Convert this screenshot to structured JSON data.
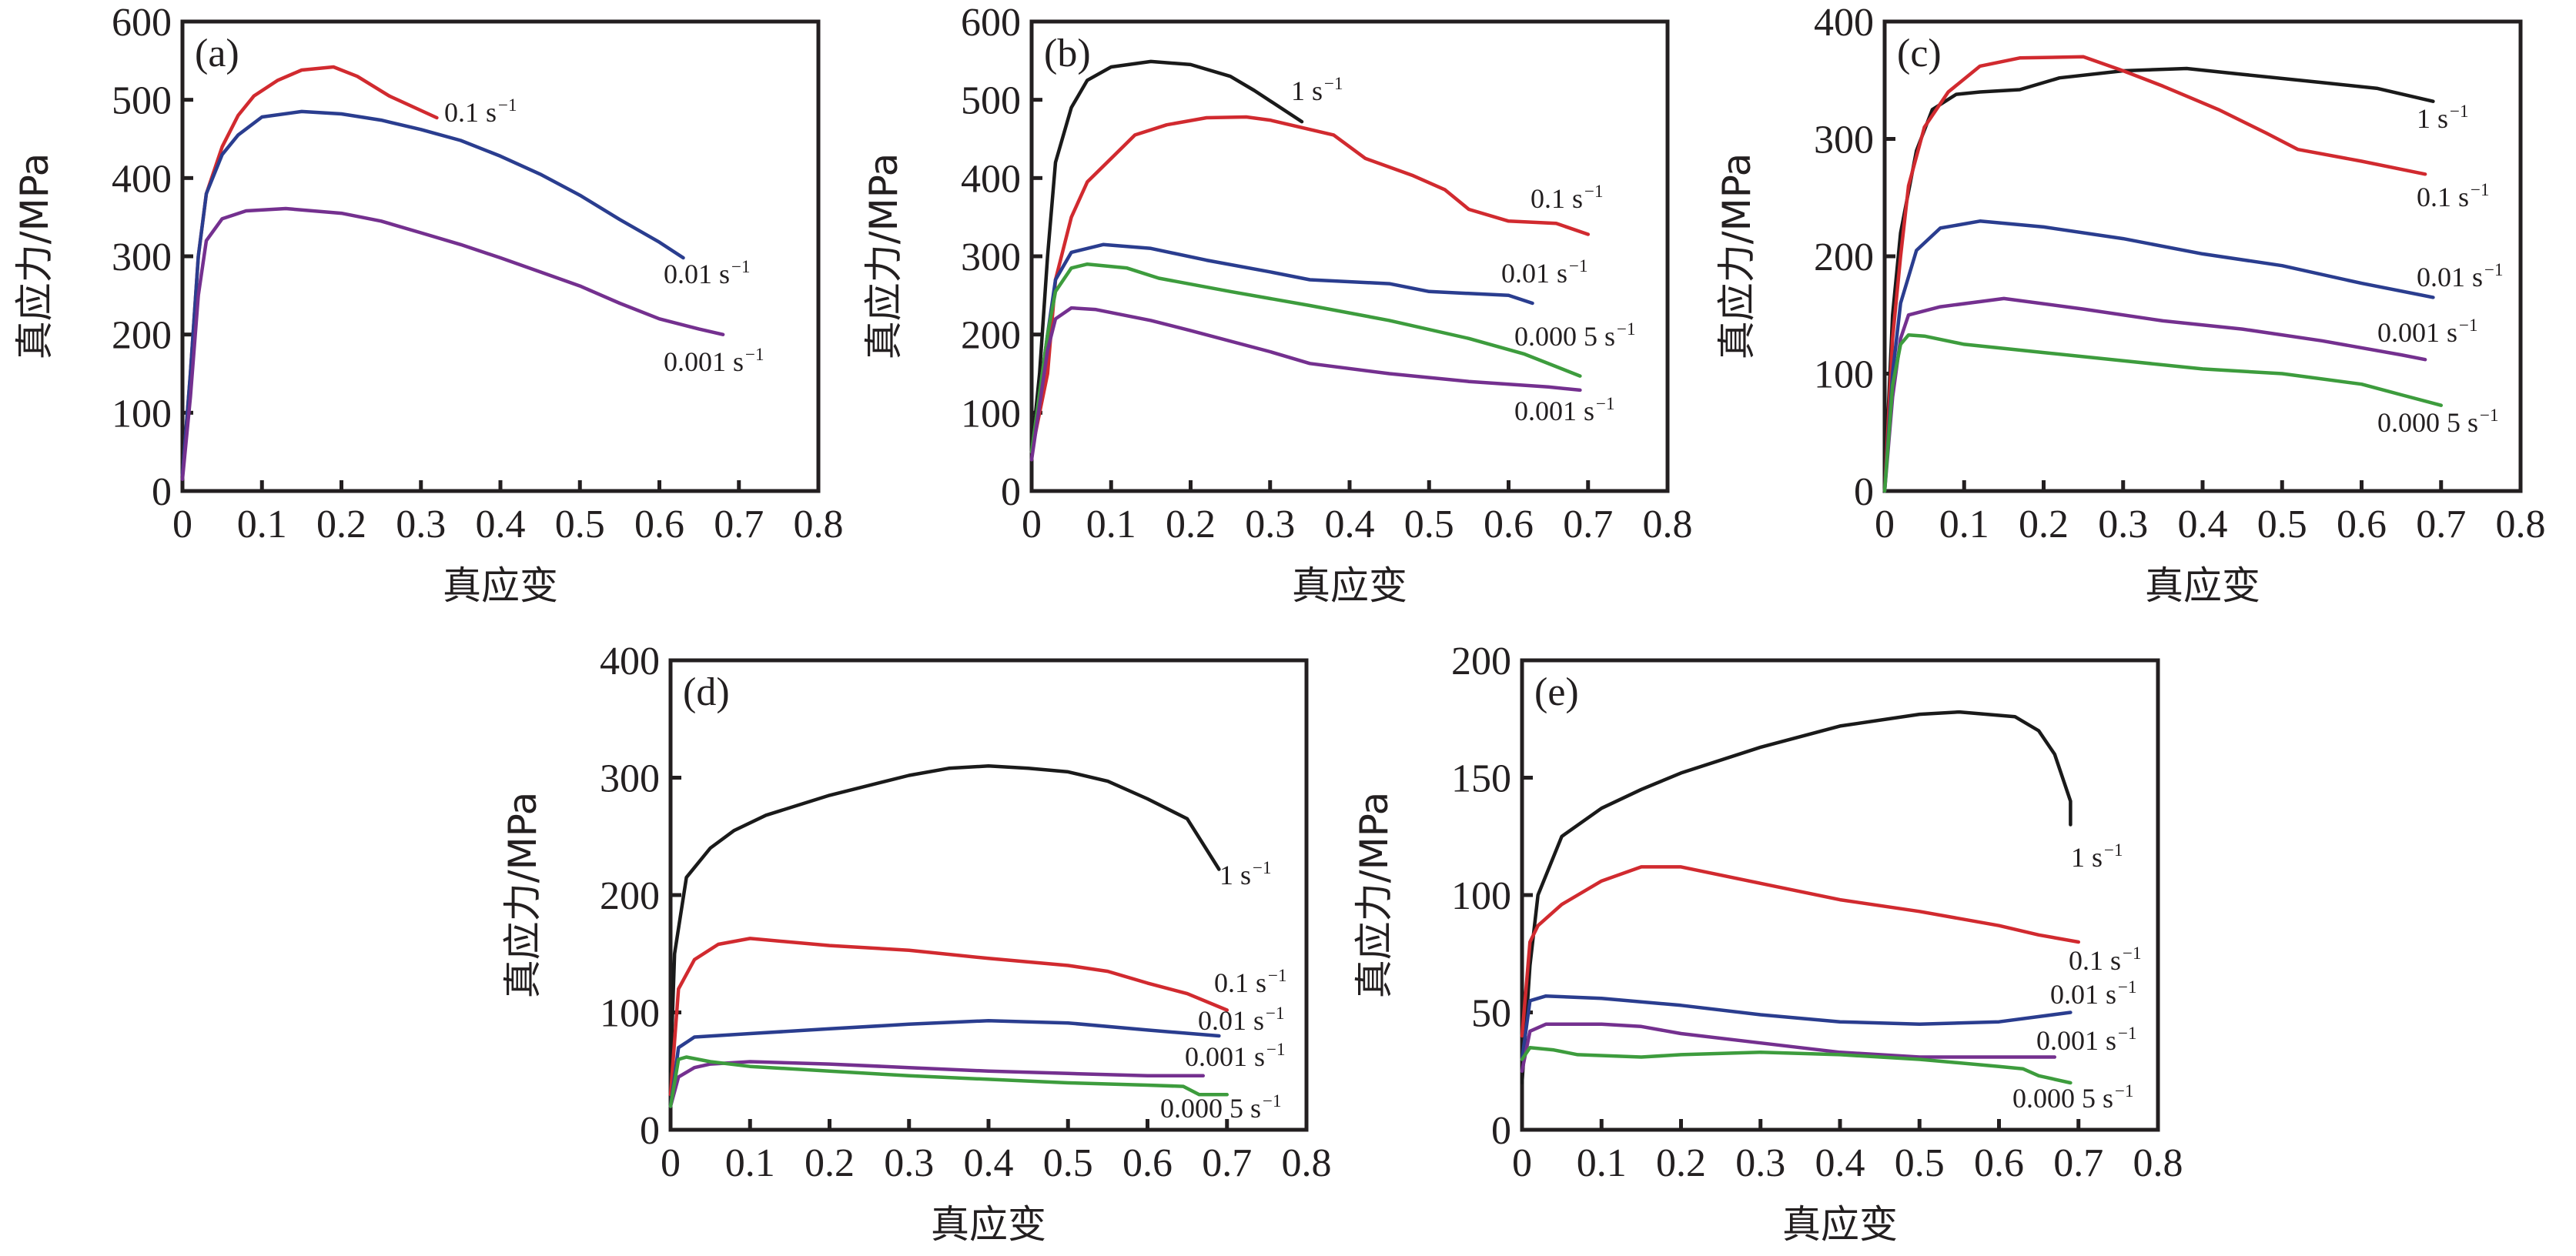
{
  "chart_data": [
    {
      "type": "line",
      "panel": "(a)",
      "xlabel": "真应变",
      "ylabel": "真应力/MPa",
      "xlim": [
        0,
        0.8
      ],
      "ylim": [
        0,
        600
      ],
      "xticks": [
        "0",
        "0.1",
        "0.2",
        "0.3",
        "0.4",
        "0.5",
        "0.6",
        "0.7",
        "0.8"
      ],
      "yticks": [
        "0",
        "100",
        "200",
        "300",
        "400",
        "500",
        "600"
      ],
      "grid": false,
      "series": [
        {
          "name": "0.1 s−1",
          "rate": "0.1 s",
          "sup": "−1",
          "color": "#d12a2f",
          "x": [
            0,
            0.01,
            0.02,
            0.03,
            0.05,
            0.07,
            0.09,
            0.12,
            0.15,
            0.19,
            0.22,
            0.26,
            0.32
          ],
          "y": [
            20,
            150,
            300,
            380,
            440,
            480,
            505,
            525,
            538,
            542,
            530,
            505,
            477
          ]
        },
        {
          "name": "0.01 s−1",
          "rate": "0.01 s",
          "sup": "−1",
          "color": "#2a3d8f",
          "x": [
            0,
            0.01,
            0.02,
            0.03,
            0.05,
            0.07,
            0.1,
            0.15,
            0.2,
            0.25,
            0.3,
            0.35,
            0.4,
            0.45,
            0.5,
            0.55,
            0.6,
            0.63
          ],
          "y": [
            20,
            150,
            300,
            380,
            430,
            455,
            478,
            485,
            482,
            474,
            462,
            448,
            428,
            405,
            378,
            347,
            318,
            298
          ]
        },
        {
          "name": "0.001 s−1",
          "rate": "0.001 s",
          "sup": "−1",
          "color": "#74308f",
          "x": [
            0,
            0.01,
            0.02,
            0.03,
            0.05,
            0.08,
            0.13,
            0.2,
            0.25,
            0.3,
            0.35,
            0.4,
            0.45,
            0.5,
            0.55,
            0.6,
            0.65,
            0.68
          ],
          "y": [
            15,
            120,
            250,
            320,
            348,
            358,
            361,
            355,
            345,
            330,
            315,
            298,
            280,
            262,
            240,
            220,
            207,
            200
          ]
        }
      ]
    },
    {
      "type": "line",
      "panel": "(b)",
      "xlabel": "真应变",
      "ylabel": "真应力/MPa",
      "xlim": [
        0,
        0.8
      ],
      "ylim": [
        0,
        600
      ],
      "xticks": [
        "0",
        "0.1",
        "0.2",
        "0.3",
        "0.4",
        "0.5",
        "0.6",
        "0.7",
        "0.8"
      ],
      "yticks": [
        "0",
        "100",
        "200",
        "300",
        "400",
        "500",
        "600"
      ],
      "grid": false,
      "series": [
        {
          "name": "1 s−1",
          "rate": "1 s",
          "sup": "−1",
          "color": "#1a1a1a",
          "x": [
            0,
            0.01,
            0.02,
            0.03,
            0.05,
            0.07,
            0.1,
            0.15,
            0.2,
            0.25,
            0.28,
            0.34
          ],
          "y": [
            50,
            150,
            300,
            420,
            490,
            525,
            542,
            549,
            545,
            530,
            512,
            472
          ]
        },
        {
          "name": "0.1 s−1",
          "rate": "0.1 s",
          "sup": "−1",
          "color": "#d12a2f",
          "x": [
            0,
            0.02,
            0.03,
            0.05,
            0.07,
            0.1,
            0.13,
            0.17,
            0.22,
            0.27,
            0.3,
            0.38,
            0.42,
            0.48,
            0.52,
            0.55,
            0.6,
            0.66,
            0.7
          ],
          "y": [
            50,
            150,
            270,
            350,
            395,
            425,
            455,
            468,
            477,
            478,
            474,
            455,
            425,
            403,
            385,
            360,
            345,
            342,
            328
          ]
        },
        {
          "name": "0.01 s−1",
          "rate": "0.01 s",
          "sup": "−1",
          "color": "#2a3d8f",
          "x": [
            0,
            0.02,
            0.03,
            0.05,
            0.09,
            0.15,
            0.22,
            0.3,
            0.35,
            0.45,
            0.5,
            0.6,
            0.63
          ],
          "y": [
            50,
            200,
            270,
            305,
            315,
            310,
            295,
            280,
            270,
            265,
            255,
            250,
            240
          ]
        },
        {
          "name": "0.000 5 s−1",
          "rate": "0.000 5 s",
          "sup": "−1",
          "color": "#3d9c3d",
          "x": [
            0,
            0.02,
            0.03,
            0.05,
            0.07,
            0.12,
            0.16,
            0.25,
            0.35,
            0.45,
            0.55,
            0.62,
            0.69
          ],
          "y": [
            50,
            200,
            255,
            285,
            290,
            285,
            272,
            255,
            237,
            218,
            195,
            175,
            147
          ]
        },
        {
          "name": "0.001 s−1",
          "rate": "0.001 s",
          "sup": "−1",
          "color": "#74308f",
          "x": [
            0,
            0.02,
            0.03,
            0.05,
            0.08,
            0.15,
            0.2,
            0.3,
            0.35,
            0.45,
            0.55,
            0.65,
            0.69
          ],
          "y": [
            40,
            180,
            220,
            234,
            232,
            218,
            205,
            178,
            163,
            150,
            140,
            133,
            129
          ]
        }
      ]
    },
    {
      "type": "line",
      "panel": "(c)",
      "xlabel": "真应变",
      "ylabel": "真应力/MPa",
      "xlim": [
        0,
        0.8
      ],
      "ylim": [
        0,
        400
      ],
      "xticks": [
        "0",
        "0.1",
        "0.2",
        "0.3",
        "0.4",
        "0.5",
        "0.6",
        "0.7",
        "0.8"
      ],
      "yticks": [
        "0",
        "100",
        "200",
        "300",
        "400"
      ],
      "grid": false,
      "series": [
        {
          "name": "1 s−1",
          "rate": "1 s",
          "sup": "−1",
          "color": "#1a1a1a",
          "x": [
            0,
            0.01,
            0.02,
            0.04,
            0.06,
            0.09,
            0.12,
            0.17,
            0.22,
            0.3,
            0.38,
            0.45,
            0.55,
            0.62,
            0.69
          ],
          "y": [
            0,
            150,
            220,
            290,
            325,
            338,
            340,
            342,
            352,
            358,
            360,
            355,
            348,
            343,
            332
          ]
        },
        {
          "name": "0.1 s−1",
          "rate": "0.1 s",
          "sup": "−1",
          "color": "#d12a2f",
          "x": [
            0,
            0.01,
            0.02,
            0.03,
            0.05,
            0.08,
            0.12,
            0.17,
            0.25,
            0.3,
            0.35,
            0.42,
            0.48,
            0.52,
            0.6,
            0.68
          ],
          "y": [
            0,
            130,
            200,
            260,
            310,
            340,
            362,
            369,
            370,
            358,
            345,
            325,
            305,
            291,
            281,
            270
          ]
        },
        {
          "name": "0.01 s−1",
          "rate": "0.01 s",
          "sup": "−1",
          "color": "#2a3d8f",
          "x": [
            0,
            0.01,
            0.02,
            0.04,
            0.07,
            0.12,
            0.2,
            0.3,
            0.4,
            0.5,
            0.6,
            0.69
          ],
          "y": [
            0,
            100,
            160,
            205,
            224,
            230,
            225,
            215,
            202,
            192,
            177,
            165
          ]
        },
        {
          "name": "0.001 s−1",
          "rate": "0.001 s",
          "sup": "−1",
          "color": "#74308f",
          "x": [
            0,
            0.01,
            0.02,
            0.03,
            0.07,
            0.15,
            0.25,
            0.35,
            0.45,
            0.55,
            0.65,
            0.68
          ],
          "y": [
            0,
            80,
            130,
            150,
            157,
            164,
            155,
            145,
            138,
            128,
            116,
            112
          ]
        },
        {
          "name": "0.000 5 s−1",
          "rate": "0.000 5 s",
          "sup": "−1",
          "color": "#3d9c3d",
          "x": [
            0,
            0.01,
            0.02,
            0.03,
            0.05,
            0.1,
            0.2,
            0.3,
            0.4,
            0.5,
            0.6,
            0.65,
            0.7
          ],
          "y": [
            0,
            90,
            125,
            133,
            132,
            125,
            118,
            111,
            104,
            100,
            91,
            82,
            73
          ]
        }
      ]
    },
    {
      "type": "line",
      "panel": "(d)",
      "xlabel": "真应变",
      "ylabel": "真应力/MPa",
      "xlim": [
        0,
        0.8
      ],
      "ylim": [
        0,
        400
      ],
      "xticks": [
        "0",
        "0.1",
        "0.2",
        "0.3",
        "0.4",
        "0.5",
        "0.6",
        "0.7",
        "0.8"
      ],
      "yticks": [
        "0",
        "100",
        "200",
        "300",
        "400"
      ],
      "grid": false,
      "series": [
        {
          "name": "1 s−1",
          "rate": "1 s",
          "sup": "−1",
          "color": "#1a1a1a",
          "x": [
            0,
            0.005,
            0.02,
            0.05,
            0.08,
            0.12,
            0.2,
            0.3,
            0.35,
            0.4,
            0.45,
            0.5,
            0.55,
            0.6,
            0.65,
            0.69
          ],
          "y": [
            50,
            150,
            215,
            240,
            255,
            268,
            285,
            302,
            308,
            310,
            308,
            305,
            297,
            282,
            265,
            222
          ]
        },
        {
          "name": "0.1 s−1",
          "rate": "0.1 s",
          "sup": "−1",
          "color": "#d12a2f",
          "x": [
            0,
            0.01,
            0.03,
            0.06,
            0.1,
            0.2,
            0.3,
            0.4,
            0.5,
            0.55,
            0.6,
            0.65,
            0.7
          ],
          "y": [
            30,
            120,
            145,
            158,
            163,
            157,
            153,
            146,
            140,
            135,
            125,
            116,
            102
          ]
        },
        {
          "name": "0.01 s−1",
          "rate": "0.01 s",
          "sup": "−1",
          "color": "#2a3d8f",
          "x": [
            0,
            0.01,
            0.03,
            0.1,
            0.2,
            0.3,
            0.4,
            0.5,
            0.6,
            0.69
          ],
          "y": [
            20,
            70,
            79,
            82,
            86,
            90,
            93,
            91,
            85,
            80
          ]
        },
        {
          "name": "0.001 s−1",
          "rate": "0.001 s",
          "sup": "−1",
          "color": "#74308f",
          "x": [
            0,
            0.01,
            0.03,
            0.05,
            0.1,
            0.2,
            0.3,
            0.4,
            0.5,
            0.6,
            0.67
          ],
          "y": [
            20,
            45,
            53,
            56,
            58,
            56,
            53,
            50,
            48,
            46,
            46
          ]
        },
        {
          "name": "0.000 5 s−1",
          "rate": "0.000 5 s",
          "sup": "−1",
          "color": "#3d9c3d",
          "x": [
            0,
            0.01,
            0.02,
            0.05,
            0.1,
            0.2,
            0.3,
            0.4,
            0.5,
            0.6,
            0.645,
            0.665,
            0.7
          ],
          "y": [
            20,
            60,
            62,
            58,
            54,
            50,
            46,
            43,
            40,
            38,
            37,
            30,
            30
          ]
        }
      ]
    },
    {
      "type": "line",
      "panel": "(e)",
      "xlabel": "真应变",
      "ylabel": "真应力/MPa",
      "xlim": [
        0,
        0.8
      ],
      "ylim": [
        0,
        200
      ],
      "xticks": [
        "0",
        "0.1",
        "0.2",
        "0.3",
        "0.4",
        "0.5",
        "0.6",
        "0.7",
        "0.8"
      ],
      "yticks": [
        "0",
        "50",
        "100",
        "150",
        "200"
      ],
      "grid": false,
      "series": [
        {
          "name": "1 s−1",
          "rate": "1 s",
          "sup": "−1",
          "color": "#1a1a1a",
          "x": [
            0,
            0.01,
            0.02,
            0.05,
            0.1,
            0.15,
            0.2,
            0.3,
            0.4,
            0.5,
            0.55,
            0.62,
            0.65,
            0.67,
            0.69,
            0.69
          ],
          "y": [
            20,
            70,
            100,
            125,
            137,
            145,
            152,
            163,
            172,
            177,
            178,
            176,
            170,
            160,
            140,
            130
          ]
        },
        {
          "name": "0.1 s−1",
          "rate": "0.1 s",
          "sup": "−1",
          "color": "#d12a2f",
          "x": [
            0,
            0.01,
            0.02,
            0.05,
            0.1,
            0.15,
            0.2,
            0.3,
            0.4,
            0.5,
            0.6,
            0.65,
            0.7
          ],
          "y": [
            40,
            80,
            87,
            96,
            106,
            112,
            112,
            105,
            98,
            93,
            87,
            83,
            80
          ]
        },
        {
          "name": "0.01 s−1",
          "rate": "0.01 s",
          "sup": "−1",
          "color": "#2a3d8f",
          "x": [
            0,
            0.01,
            0.03,
            0.1,
            0.2,
            0.3,
            0.4,
            0.5,
            0.6,
            0.69
          ],
          "y": [
            30,
            55,
            57,
            56,
            53,
            49,
            46,
            45,
            46,
            50
          ]
        },
        {
          "name": "0.001 s−1",
          "rate": "0.001 s",
          "sup": "−1",
          "color": "#74308f",
          "x": [
            0,
            0.01,
            0.03,
            0.1,
            0.15,
            0.2,
            0.3,
            0.4,
            0.5,
            0.6,
            0.67
          ],
          "y": [
            25,
            42,
            45,
            45,
            44,
            41,
            37,
            33,
            31,
            31,
            31
          ]
        },
        {
          "name": "0.000 5 s−1",
          "rate": "0.000 5 s",
          "sup": "−1",
          "color": "#3d9c3d",
          "x": [
            0,
            0.01,
            0.04,
            0.07,
            0.15,
            0.2,
            0.3,
            0.4,
            0.5,
            0.6,
            0.63,
            0.65,
            0.69
          ],
          "y": [
            30,
            35,
            34,
            32,
            31,
            32,
            33,
            32,
            30,
            27,
            26,
            23,
            20
          ]
        }
      ]
    }
  ]
}
